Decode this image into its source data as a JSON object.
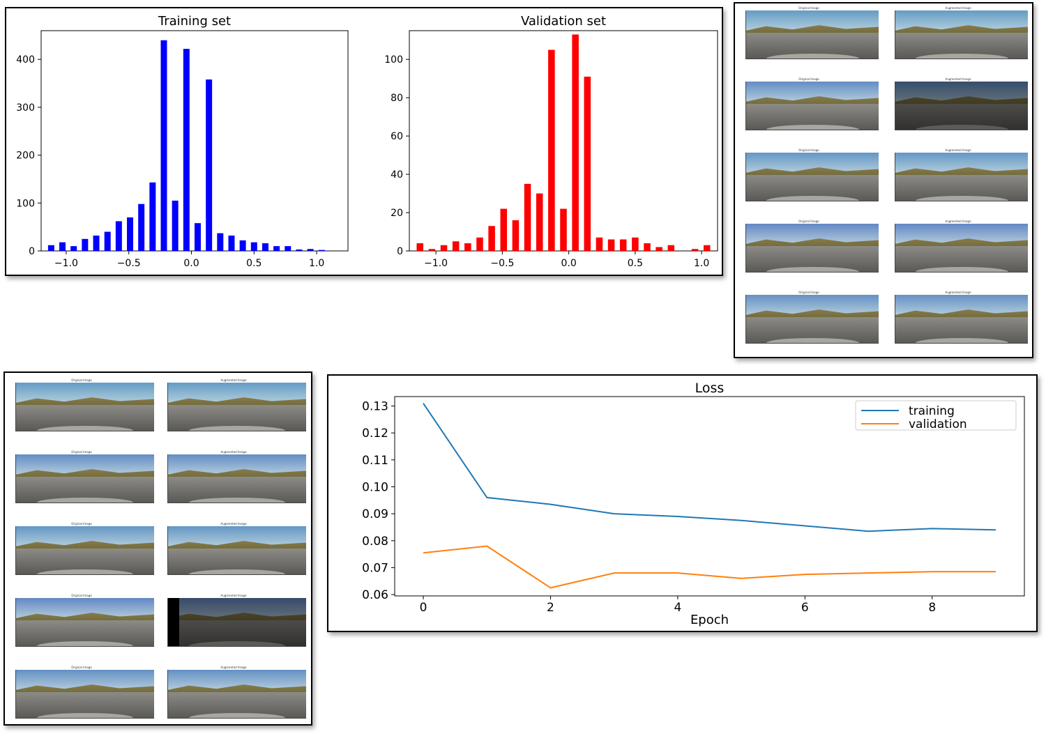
{
  "chart_data": [
    {
      "type": "bar",
      "title": "Training set",
      "color": "#0000ff",
      "xlim": [
        -1.2,
        1.25
      ],
      "ylim": [
        0,
        460
      ],
      "xticks": [
        -1.0,
        -0.5,
        0.0,
        0.5,
        1.0
      ],
      "xtick_labels": [
        "−1.0",
        "−0.5",
        "0.0",
        "0.5",
        "1.0"
      ],
      "yticks": [
        0,
        100,
        200,
        300,
        400
      ],
      "ytick_labels": [
        "0",
        "100",
        "200",
        "300",
        "400"
      ],
      "bar_width": 0.05,
      "x": [
        -1.12,
        -1.03,
        -0.94,
        -0.85,
        -0.76,
        -0.67,
        -0.58,
        -0.49,
        -0.4,
        -0.31,
        -0.22,
        -0.13,
        -0.04,
        0.05,
        0.14,
        0.23,
        0.32,
        0.41,
        0.5,
        0.59,
        0.68,
        0.77,
        0.86,
        0.95,
        1.04
      ],
      "values": [
        12,
        18,
        10,
        25,
        32,
        40,
        62,
        70,
        98,
        143,
        440,
        105,
        422,
        58,
        358,
        37,
        32,
        22,
        18,
        16,
        10,
        10,
        3,
        4,
        2
      ]
    },
    {
      "type": "bar",
      "title": "Validation set",
      "color": "#ff0000",
      "xlim": [
        -1.2,
        1.12
      ],
      "ylim": [
        0,
        115
      ],
      "xticks": [
        -1.0,
        -0.5,
        0.0,
        0.5,
        1.0
      ],
      "xtick_labels": [
        "−1.0",
        "−0.5",
        "0.0",
        "0.5",
        "1.0"
      ],
      "yticks": [
        0,
        20,
        40,
        60,
        80,
        100
      ],
      "ytick_labels": [
        "0",
        "20",
        "40",
        "60",
        "80",
        "100"
      ],
      "bar_width": 0.05,
      "x": [
        -1.12,
        -1.03,
        -0.94,
        -0.85,
        -0.76,
        -0.67,
        -0.58,
        -0.49,
        -0.4,
        -0.31,
        -0.22,
        -0.13,
        -0.04,
        0.05,
        0.14,
        0.23,
        0.32,
        0.41,
        0.5,
        0.59,
        0.68,
        0.77,
        0.86,
        0.95,
        1.04
      ],
      "values": [
        4,
        1,
        3,
        5,
        4,
        7,
        13,
        22,
        16,
        35,
        30,
        105,
        22,
        113,
        91,
        7,
        6,
        6,
        7,
        4,
        2,
        3,
        0,
        1,
        3
      ]
    },
    {
      "type": "line",
      "title": "Loss",
      "xlabel": "Epoch",
      "ylabel": "",
      "xlim": [
        -0.45,
        9.45
      ],
      "ylim": [
        0.0595,
        0.1335
      ],
      "xticks": [
        0,
        2,
        4,
        6,
        8
      ],
      "xtick_labels": [
        "0",
        "2",
        "4",
        "6",
        "8"
      ],
      "yticks": [
        0.06,
        0.07,
        0.08,
        0.09,
        0.1,
        0.11,
        0.12,
        0.13
      ],
      "ytick_labels": [
        "0.06",
        "0.07",
        "0.08",
        "0.09",
        "0.10",
        "0.11",
        "0.12",
        "0.13"
      ],
      "legend_position": "top-right",
      "x": [
        0,
        1,
        2,
        3,
        4,
        5,
        6,
        7,
        8,
        9
      ],
      "series": [
        {
          "name": "training",
          "color": "#1f77b4",
          "values": [
            0.131,
            0.096,
            0.0935,
            0.09,
            0.089,
            0.0875,
            0.0855,
            0.0835,
            0.0845,
            0.084
          ]
        },
        {
          "name": "validation",
          "color": "#ff7f0e",
          "values": [
            0.0755,
            0.078,
            0.0625,
            0.068,
            0.068,
            0.066,
            0.0675,
            0.068,
            0.0685,
            0.0685
          ]
        }
      ]
    }
  ],
  "image_grids": {
    "right": {
      "rows": [
        {
          "left_caption": "Original Image",
          "right_caption": "Augmented Image",
          "augmented_dark": false,
          "augmented_blackbar": false
        },
        {
          "left_caption": "Original Image",
          "right_caption": "Augmented Image",
          "augmented_dark": true,
          "augmented_blackbar": false
        },
        {
          "left_caption": "Original Image",
          "right_caption": "Augmented Image",
          "augmented_dark": false,
          "augmented_blackbar": false
        },
        {
          "left_caption": "Original Image",
          "right_caption": "Augmented Image",
          "augmented_dark": false,
          "augmented_blackbar": false
        },
        {
          "left_caption": "Original Image",
          "right_caption": "Augmented Image",
          "augmented_dark": false,
          "augmented_blackbar": false
        }
      ]
    },
    "bottom_left": {
      "rows": [
        {
          "left_caption": "Original Image",
          "right_caption": "Augmented Image",
          "augmented_dark": false,
          "augmented_blackbar": false
        },
        {
          "left_caption": "Original Image",
          "right_caption": "Augmented Image",
          "augmented_dark": false,
          "augmented_blackbar": false
        },
        {
          "left_caption": "Original Image",
          "right_caption": "Augmented Image",
          "augmented_dark": false,
          "augmented_blackbar": false
        },
        {
          "left_caption": "Original Image",
          "right_caption": "Augmented Image",
          "augmented_dark": true,
          "augmented_blackbar": true
        },
        {
          "left_caption": "Original Image",
          "right_caption": "Augmented Image",
          "augmented_dark": false,
          "augmented_blackbar": false
        }
      ]
    }
  }
}
